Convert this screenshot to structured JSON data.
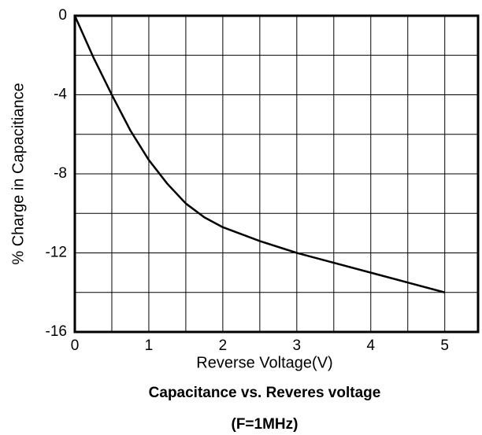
{
  "chart_data": {
    "type": "line",
    "title": "Capacitance vs. Reveres voltage",
    "subtitle": "(F=1MHz)",
    "x_label": "Reverse Voltage(V)",
    "y_label": "% Charge in Capacitiance",
    "x": [
      0,
      0.25,
      0.5,
      0.75,
      1,
      1.25,
      1.5,
      1.75,
      2,
      2.5,
      3,
      3.5,
      4,
      4.5,
      5
    ],
    "series": [
      {
        "name": "Capacitance",
        "color": "#000000",
        "values": [
          0,
          -2.1,
          -4,
          -5.8,
          -7.3,
          -8.5,
          -9.5,
          -10.2,
          -10.7,
          -11.4,
          -12,
          -12.5,
          -13,
          -13.5,
          -14
        ]
      }
    ],
    "xlim": [
      0,
      5.45
    ],
    "xticks": [
      0,
      1,
      2,
      3,
      4,
      5
    ],
    "x_minor_ticks": [
      0.5,
      1.5,
      2.5,
      3.5,
      4.5
    ],
    "ylim": [
      -16,
      0
    ],
    "yticks": [
      0,
      -4,
      -8,
      -12,
      -16
    ],
    "y_minor_ticks": [
      -2,
      -6,
      -10,
      -14
    ],
    "grid": true
  }
}
